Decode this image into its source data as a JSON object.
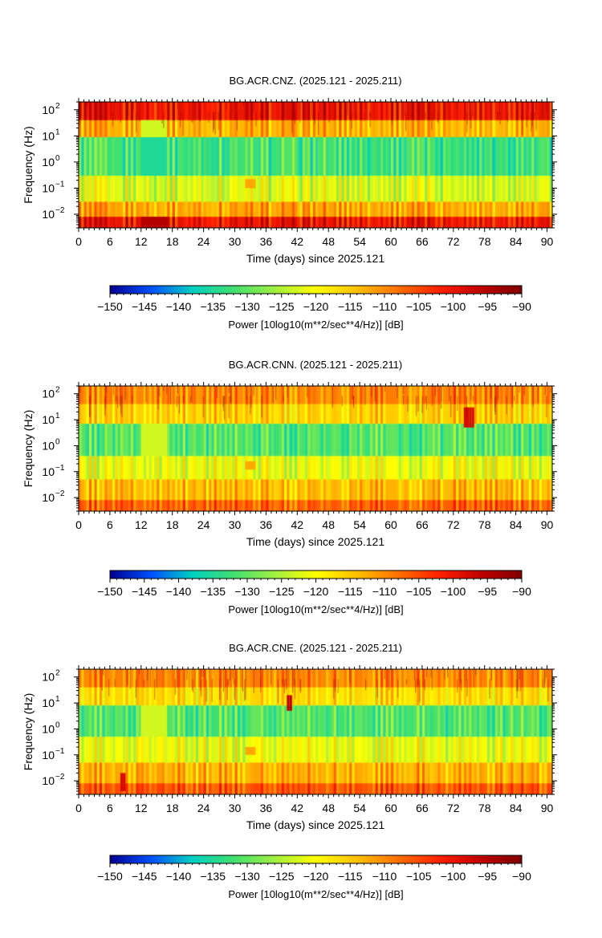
{
  "colorbar": {
    "label": "Power [10log10(m**2/sec**4/Hz)] [dB]",
    "range": [
      -150,
      -90
    ],
    "ticks": [
      -150,
      -145,
      -140,
      -135,
      -130,
      -125,
      -120,
      -115,
      -110,
      -105,
      -100,
      -95,
      -90
    ],
    "tick_labels": [
      "−150",
      "−145",
      "−140",
      "−135",
      "−130",
      "−125",
      "−120",
      "−115",
      "−110",
      "−105",
      "−100",
      "−95",
      "−90"
    ],
    "colormap": [
      "#00008f",
      "#0050ff",
      "#00d0c0",
      "#40e070",
      "#a0f040",
      "#ffff00",
      "#ffc000",
      "#ff7000",
      "#ff2000",
      "#c00000",
      "#800000"
    ]
  },
  "chart_data": [
    {
      "type": "heatmap",
      "title": "BG.ACR.CNZ. (2025.121 - 2025.211)",
      "xlabel": "Time (days) since 2025.121",
      "ylabel": "Frequency (Hz)",
      "xlim": [
        0,
        91
      ],
      "ylim": [
        0.003,
        200
      ],
      "yscale": "log",
      "x_ticks": [
        0,
        6,
        12,
        18,
        24,
        30,
        36,
        42,
        48,
        54,
        60,
        66,
        72,
        78,
        84,
        90
      ],
      "x_tick_labels": [
        "0",
        "6",
        "12",
        "18",
        "24",
        "30",
        "36",
        "42",
        "48",
        "54",
        "60",
        "66",
        "72",
        "78",
        "84",
        "90"
      ],
      "y_ticks": [
        100,
        10,
        1,
        0.1,
        0.01
      ],
      "y_tick_bases": [
        "10",
        "10",
        "10",
        "10",
        "10"
      ],
      "y_tick_exps": [
        "2",
        "1",
        "0",
        "−1",
        "−2"
      ],
      "bands": [
        {
          "f": [
            40,
            200
          ],
          "db": -100
        },
        {
          "f": [
            9,
            40
          ],
          "db": -113
        },
        {
          "f": [
            0.3,
            9
          ],
          "db": -132
        },
        {
          "f": [
            0.03,
            0.3
          ],
          "db": -122
        },
        {
          "f": [
            0.008,
            0.03
          ],
          "db": -112
        },
        {
          "f": [
            0.003,
            0.008
          ],
          "db": -100
        }
      ],
      "features": [
        {
          "t": [
            12,
            17
          ],
          "f": [
            0.3,
            9
          ],
          "db": -135
        },
        {
          "t": [
            12,
            17
          ],
          "f": [
            9,
            40
          ],
          "db": -123
        },
        {
          "t": [
            12,
            17
          ],
          "f": [
            0.003,
            0.008
          ],
          "db": -95
        },
        {
          "t": [
            32,
            34
          ],
          "f": [
            0.1,
            0.22
          ],
          "db": -112
        }
      ]
    },
    {
      "type": "heatmap",
      "title": "BG.ACR.CNN. (2025.121 - 2025.211)",
      "xlabel": "Time (days) since 2025.121",
      "ylabel": "Frequency (Hz)",
      "xlim": [
        0,
        91
      ],
      "ylim": [
        0.003,
        200
      ],
      "yscale": "log",
      "x_ticks": [
        0,
        6,
        12,
        18,
        24,
        30,
        36,
        42,
        48,
        54,
        60,
        66,
        72,
        78,
        84,
        90
      ],
      "x_tick_labels": [
        "0",
        "6",
        "12",
        "18",
        "24",
        "30",
        "36",
        "42",
        "48",
        "54",
        "60",
        "66",
        "72",
        "78",
        "84",
        "90"
      ],
      "y_ticks": [
        100,
        10,
        1,
        0.1,
        0.01
      ],
      "y_tick_bases": [
        "10",
        "10",
        "10",
        "10",
        "10"
      ],
      "y_tick_exps": [
        "2",
        "1",
        "0",
        "−1",
        "−2"
      ],
      "bands": [
        {
          "f": [
            40,
            200
          ],
          "db": -110
        },
        {
          "f": [
            7,
            40
          ],
          "db": -116
        },
        {
          "f": [
            0.4,
            7
          ],
          "db": -131
        },
        {
          "f": [
            0.05,
            0.4
          ],
          "db": -121
        },
        {
          "f": [
            0.008,
            0.05
          ],
          "db": -114
        },
        {
          "f": [
            0.003,
            0.008
          ],
          "db": -107
        }
      ],
      "features": [
        {
          "t": [
            12,
            17
          ],
          "f": [
            0.4,
            7
          ],
          "db": -123
        },
        {
          "t": [
            74,
            76
          ],
          "f": [
            5,
            30
          ],
          "db": -98
        },
        {
          "t": [
            32,
            34
          ],
          "f": [
            0.12,
            0.25
          ],
          "db": -112
        }
      ]
    },
    {
      "type": "heatmap",
      "title": "BG.ACR.CNE. (2025.121 - 2025.211)",
      "xlabel": "Time (days) since 2025.121",
      "ylabel": "Frequency (Hz)",
      "xlim": [
        0,
        91
      ],
      "ylim": [
        0.003,
        200
      ],
      "yscale": "log",
      "x_ticks": [
        0,
        6,
        12,
        18,
        24,
        30,
        36,
        42,
        48,
        54,
        60,
        66,
        72,
        78,
        84,
        90
      ],
      "x_tick_labels": [
        "0",
        "6",
        "12",
        "18",
        "24",
        "30",
        "36",
        "42",
        "48",
        "54",
        "60",
        "66",
        "72",
        "78",
        "84",
        "90"
      ],
      "y_ticks": [
        100,
        10,
        1,
        0.1,
        0.01
      ],
      "y_tick_bases": [
        "10",
        "10",
        "10",
        "10",
        "10"
      ],
      "y_tick_exps": [
        "2",
        "1",
        "0",
        "−1",
        "−2"
      ],
      "bands": [
        {
          "f": [
            40,
            200
          ],
          "db": -110
        },
        {
          "f": [
            8,
            40
          ],
          "db": -117
        },
        {
          "f": [
            0.5,
            8
          ],
          "db": -131
        },
        {
          "f": [
            0.05,
            0.5
          ],
          "db": -121
        },
        {
          "f": [
            0.008,
            0.05
          ],
          "db": -113
        },
        {
          "f": [
            0.003,
            0.008
          ],
          "db": -106
        }
      ],
      "features": [
        {
          "t": [
            12,
            17
          ],
          "f": [
            0.5,
            8
          ],
          "db": -123
        },
        {
          "t": [
            40,
            41
          ],
          "f": [
            5,
            20
          ],
          "db": -96
        },
        {
          "t": [
            8,
            9
          ],
          "f": [
            0.004,
            0.02
          ],
          "db": -98
        },
        {
          "t": [
            32,
            34
          ],
          "f": [
            0.1,
            0.2
          ],
          "db": -112
        }
      ]
    }
  ]
}
